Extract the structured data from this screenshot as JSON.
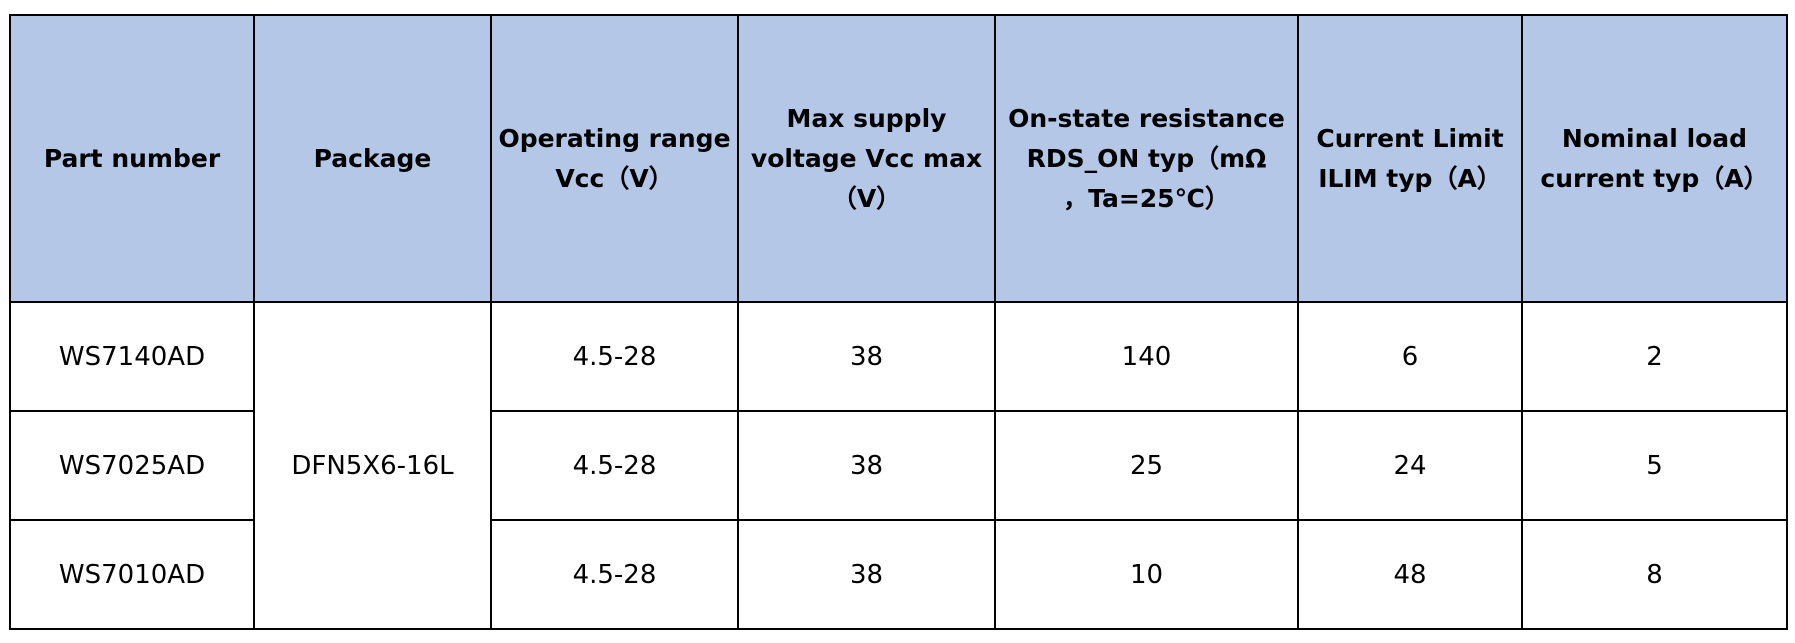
{
  "table": {
    "header": [
      [
        "Part number"
      ],
      [
        "Package"
      ],
      [
        "Operating range",
        "Vcc（V）"
      ],
      [
        "Max supply",
        "voltage Vcc max",
        "（V）"
      ],
      [
        "On-state resistance",
        "RDS_ON typ（mΩ",
        "，Ta=25℃）"
      ],
      [
        "Current Limit",
        "ILIM typ（A）"
      ],
      [
        "Nominal load",
        "current typ（A）"
      ]
    ],
    "package": "DFN5X6-16L",
    "rows": [
      [
        "WS7140AD",
        "4.5-28",
        38,
        140,
        6,
        2
      ],
      [
        "WS7025AD",
        "4.5-28",
        38,
        25,
        24,
        5
      ],
      [
        "WS7010AD",
        "4.5-28",
        38,
        10,
        48,
        8
      ]
    ]
  }
}
